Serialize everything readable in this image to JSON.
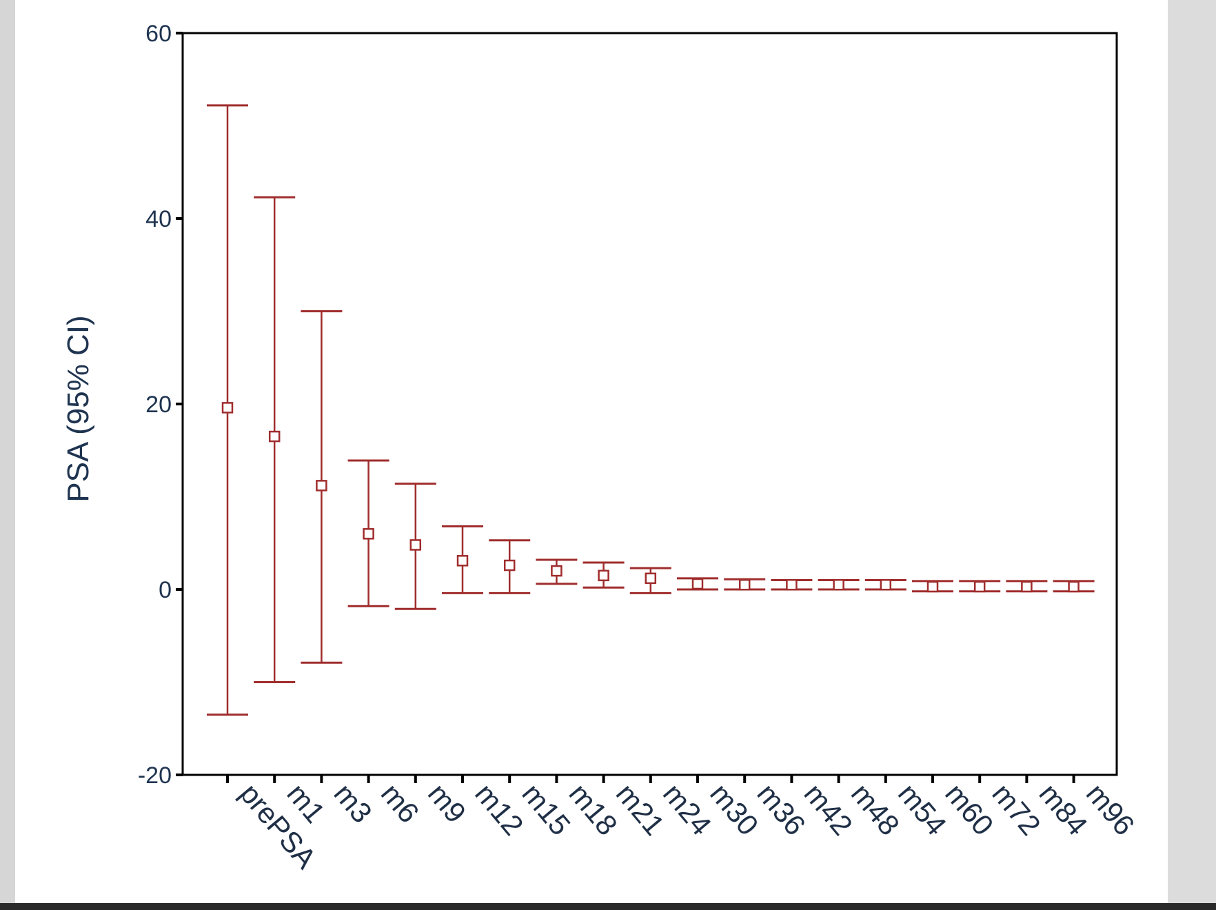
{
  "chart_data": {
    "type": "error-bar",
    "ylabel": "PSA (95% CI)",
    "xlabel": "",
    "ylim": [
      -20,
      60
    ],
    "yticks": [
      -20,
      0,
      20,
      40,
      60
    ],
    "grid": false,
    "categories": [
      "prePSA",
      "m1",
      "m3",
      "m6",
      "m9",
      "m12",
      "m15",
      "m18",
      "m21",
      "m24",
      "m30",
      "m36",
      "m42",
      "m48",
      "m54",
      "m60",
      "m72",
      "m84",
      "m96"
    ],
    "mean": [
      19.6,
      16.5,
      11.2,
      6.0,
      4.8,
      3.1,
      2.6,
      2.0,
      1.5,
      1.2,
      0.6,
      0.5,
      0.5,
      0.5,
      0.5,
      0.3,
      0.3,
      0.3,
      0.3
    ],
    "lower": [
      -13.5,
      -10.0,
      -7.9,
      -1.8,
      -2.1,
      -0.4,
      -0.4,
      0.6,
      0.2,
      -0.4,
      0.0,
      0.0,
      0.0,
      0.0,
      0.0,
      -0.2,
      -0.2,
      -0.2,
      -0.2
    ],
    "upper": [
      52.2,
      42.3,
      30.0,
      13.9,
      11.4,
      6.8,
      5.3,
      3.2,
      2.9,
      2.3,
      1.2,
      1.1,
      1.0,
      1.0,
      1.0,
      0.9,
      0.9,
      0.9,
      0.9
    ],
    "colors": {
      "errorbar": "#a02c2c",
      "axis": "#000000",
      "text": "#1f3450"
    }
  }
}
